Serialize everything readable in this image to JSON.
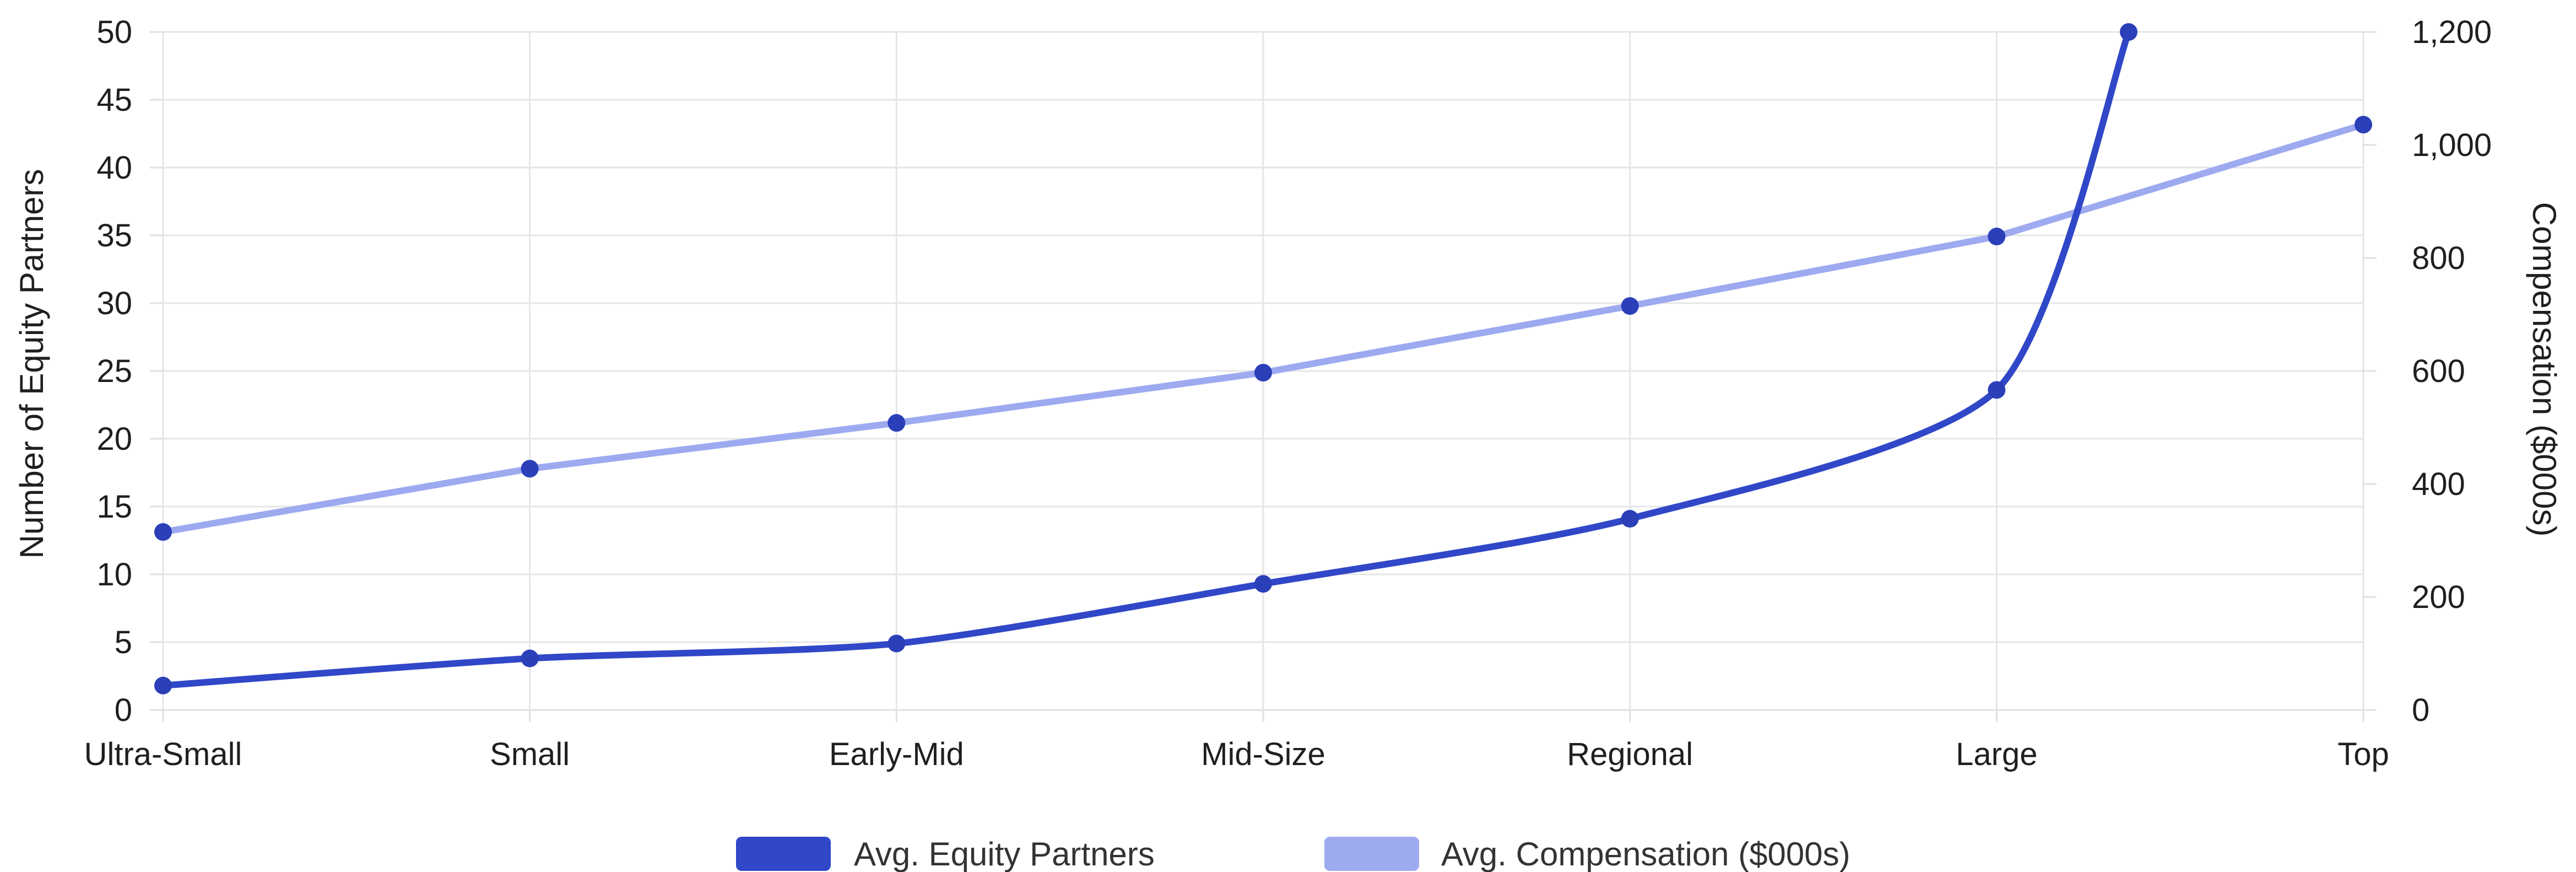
{
  "chart_data": {
    "type": "line",
    "categories": [
      "Ultra-Small",
      "Small",
      "Early-Mid",
      "Mid-Size",
      "Regional",
      "Large",
      "Top"
    ],
    "series": [
      {
        "name": "Avg. Equity Partners",
        "axis": "left",
        "color": "#3047c8",
        "x": [
          0,
          1,
          2,
          3,
          4,
          5,
          5.36
        ],
        "values": [
          1.8,
          3.8,
          4.9,
          9.3,
          14.1,
          23.6,
          50
        ]
      },
      {
        "name": "Avg. Compensation ($000s)",
        "axis": "right",
        "color": "#9daaf0",
        "x": [
          0,
          1,
          2,
          3,
          4,
          5,
          6
        ],
        "values": [
          315,
          427,
          508,
          597,
          715,
          838,
          1036
        ]
      }
    ],
    "y_left": {
      "label": "Number of Equity Partners",
      "min": 0,
      "max": 50,
      "ticks": [
        "0",
        "5",
        "10",
        "15",
        "20",
        "25",
        "30",
        "35",
        "40",
        "45",
        "50"
      ]
    },
    "y_right": {
      "label": "Compensation ($000s)",
      "min": 0,
      "max": 1200,
      "ticks": [
        "0",
        "200",
        "400",
        "600",
        "800",
        "1,000",
        "1,200"
      ]
    },
    "grid": true,
    "legend": {
      "position": "bottom"
    }
  }
}
